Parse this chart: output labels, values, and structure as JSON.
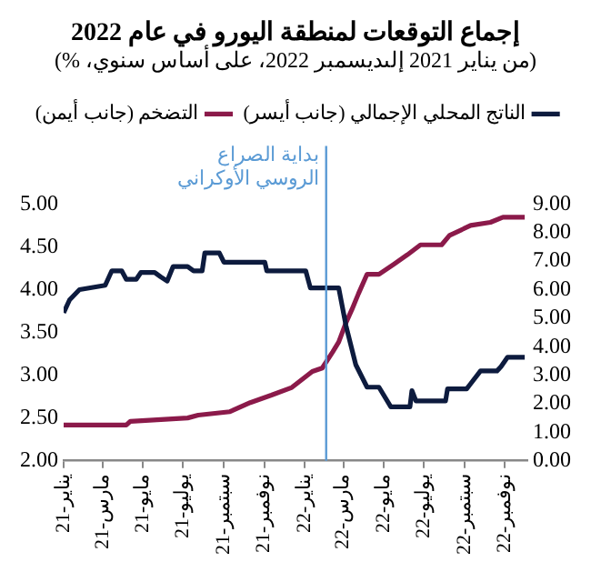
{
  "chart_data": {
    "type": "line",
    "title": "إجماع التوقعات لمنطقة اليورو في عام 2022",
    "subtitle": "(من يناير 2021 إلىديسمبر 2022، على أساس سنوي، %)",
    "series": [
      {
        "name": "الناتج المحلي الإجمالي (جانب أيسر)",
        "color": "#0d1b3e",
        "axis": "y",
        "x": [
          "2021-01-01",
          "2021-01-10",
          "2021-01-25",
          "2021-03-05",
          "2021-03-15",
          "2021-03-30",
          "2021-04-06",
          "2021-04-21",
          "2021-04-28",
          "2021-05-19",
          "2021-05-28",
          "2021-06-07",
          "2021-06-16",
          "2021-07-08",
          "2021-07-17",
          "2021-07-30",
          "2021-08-03",
          "2021-08-25",
          "2021-09-01",
          "2021-11-02",
          "2021-11-05",
          "2022-01-03",
          "2022-01-10",
          "2022-02-22",
          "2022-03-05",
          "2022-03-20",
          "2022-04-06",
          "2022-04-24",
          "2022-05-12",
          "2022-06-10",
          "2022-06-13",
          "2022-06-19",
          "2022-08-03",
          "2022-08-06",
          "2022-09-04",
          "2022-09-10",
          "2022-09-25",
          "2022-10-20",
          "2022-10-26",
          "2022-11-05",
          "2022-12-01"
        ],
        "values": [
          3.73,
          3.88,
          4.0,
          4.05,
          4.22,
          4.22,
          4.12,
          4.12,
          4.2,
          4.2,
          4.15,
          4.1,
          4.27,
          4.27,
          4.22,
          4.22,
          4.43,
          4.43,
          4.32,
          4.32,
          4.22,
          4.22,
          4.02,
          4.02,
          3.58,
          3.12,
          2.86,
          2.86,
          2.63,
          2.63,
          2.82,
          2.7,
          2.7,
          2.84,
          2.84,
          2.9,
          3.05,
          3.05,
          3.1,
          3.21,
          3.21
        ]
      },
      {
        "name": "التضخم (جانب أيمن)",
        "color": "#8b1a4a",
        "axis": "y2",
        "x": [
          "2021-01-01",
          "2021-04-06",
          "2021-04-12",
          "2021-07-08",
          "2021-07-24",
          "2021-09-10",
          "2021-10-11",
          "2021-11-12",
          "2021-12-13",
          "2022-01-13",
          "2022-01-28",
          "2022-02-13",
          "2022-02-22",
          "2022-03-05",
          "2022-03-14",
          "2022-03-24",
          "2022-04-06",
          "2022-04-24",
          "2022-05-16",
          "2022-06-06",
          "2022-06-26",
          "2022-07-28",
          "2022-08-09",
          "2022-09-10",
          "2022-10-10",
          "2022-10-29",
          "2022-12-01"
        ],
        "values": [
          1.25,
          1.25,
          1.38,
          1.5,
          1.6,
          1.72,
          2.04,
          2.3,
          2.57,
          3.13,
          3.25,
          3.82,
          4.16,
          4.84,
          5.3,
          5.86,
          6.54,
          6.54,
          6.88,
          7.22,
          7.57,
          7.57,
          7.9,
          8.25,
          8.36,
          8.54,
          8.54
        ]
      }
    ],
    "xlim": [
      "2021-01-01",
      "2022-12-05"
    ],
    "xticks": [
      {
        "value": "2021-01-01",
        "label": "يناير-21"
      },
      {
        "value": "2021-03-01",
        "label": "مارس-21"
      },
      {
        "value": "2021-05-01",
        "label": "مايو-21"
      },
      {
        "value": "2021-07-01",
        "label": "يوليو-21"
      },
      {
        "value": "2021-09-01",
        "label": "سبتمبر-21"
      },
      {
        "value": "2021-11-01",
        "label": "نوفمبر-21"
      },
      {
        "value": "2022-01-01",
        "label": "يناير-22"
      },
      {
        "value": "2022-03-01",
        "label": "مارس-22"
      },
      {
        "value": "2022-05-01",
        "label": "مايو-22"
      },
      {
        "value": "2022-07-01",
        "label": "يوليو-22"
      },
      {
        "value": "2022-09-01",
        "label": "سبتمبر-22"
      },
      {
        "value": "2022-11-01",
        "label": "نوفمبر-22"
      }
    ],
    "ylim": [
      2,
      5
    ],
    "yticks": [
      {
        "value": 2,
        "label": "2.00"
      },
      {
        "value": 2.5,
        "label": "2.50"
      },
      {
        "value": 3,
        "label": "3.00"
      },
      {
        "value": 3.5,
        "label": "3.50"
      },
      {
        "value": 4,
        "label": "4.00"
      },
      {
        "value": 4.5,
        "label": "4.50"
      },
      {
        "value": 5,
        "label": "5.00"
      }
    ],
    "y2lim": [
      0,
      9
    ],
    "y2ticks": [
      {
        "value": 0,
        "label": "0.00"
      },
      {
        "value": 1,
        "label": "1.00"
      },
      {
        "value": 2,
        "label": "2.00"
      },
      {
        "value": 3,
        "label": "3.00"
      },
      {
        "value": 4,
        "label": "4.00"
      },
      {
        "value": 5,
        "label": "5.00"
      },
      {
        "value": 6,
        "label": "6.00"
      },
      {
        "value": 7,
        "label": "7.00"
      },
      {
        "value": 8,
        "label": "8.00"
      },
      {
        "value": 9,
        "label": "9.00"
      }
    ],
    "ref_lines": [
      {
        "axis": "x",
        "value": "2022-02-03",
        "label": "بداية الصراع الروسي الأوكراني",
        "color": "#5b9bd5"
      }
    ],
    "legend": "top",
    "marker": "none",
    "line_style": "solid",
    "grid": false
  }
}
